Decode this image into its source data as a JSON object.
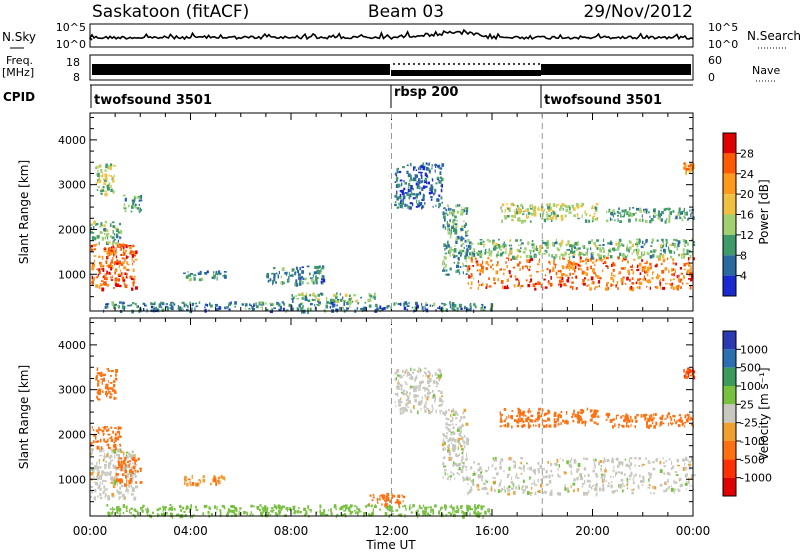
{
  "header": {
    "station": "Saskatoon (fitACF)",
    "beam": "Beam 03",
    "date": "29/Nov/2012"
  },
  "noise_panel": {
    "left_label": "N.Sky",
    "right_label": "N.Search",
    "left_ticks": [
      "10^5",
      "10^0"
    ],
    "right_ticks": [
      "10^5",
      "10^0"
    ]
  },
  "freq_panel": {
    "left_label_1": "Freq.",
    "left_label_2": "[MHz]",
    "left_ticks": [
      "18",
      "8"
    ],
    "right_label": "Nave",
    "right_ticks": [
      "60",
      "0"
    ]
  },
  "cpid": {
    "label": "CPID",
    "segments": [
      {
        "name": "twofsound 3501",
        "start_h": 0,
        "end_h": 12
      },
      {
        "name": "rbsp 200",
        "start_h": 12,
        "end_h": 18
      },
      {
        "name": "twofsound 3501",
        "start_h": 18,
        "end_h": 24
      }
    ]
  },
  "power_colorbar": {
    "title": "Power [dB]",
    "ticks": [
      "28",
      "24",
      "20",
      "16",
      "12",
      "8",
      "4"
    ],
    "colors": [
      "#e00000",
      "#ff5a00",
      "#ff9a1a",
      "#f0c040",
      "#a0d070",
      "#3f9a6a",
      "#2a6aa0",
      "#1a2ad0"
    ]
  },
  "velocity_colorbar": {
    "title": "Velocity [m s⁻¹]",
    "ticks": [
      "1000",
      "500",
      "100",
      "25",
      "-25",
      "-100",
      "-500",
      "-1000"
    ],
    "colors": [
      "#2a3ab0",
      "#2a70b0",
      "#3c9a5a",
      "#78c040",
      "#c8c8c0",
      "#f0a030",
      "#ff7010",
      "#ff3000",
      "#e00000"
    ]
  },
  "axes": {
    "ylabel": "Slant Range [km]",
    "yticks": [
      "4000",
      "3000",
      "2000",
      "1000"
    ],
    "xticks": [
      "00:00",
      "04:00",
      "08:00",
      "12:00",
      "16:00",
      "20:00",
      "00:00"
    ],
    "xlabel": "Time UT"
  },
  "chart_data": [
    {
      "type": "heatmap",
      "title": "",
      "xlabel": "Time UT",
      "ylabel": "Slant Range [km]",
      "xlim": [
        0,
        24
      ],
      "ylim": [
        180,
        4600
      ],
      "colorbar": "Power [dB]",
      "clim": [
        0,
        32
      ],
      "regions": [
        {
          "t0": 0.0,
          "t1": 1.8,
          "r0": 700,
          "r1": 1700,
          "level": 26
        },
        {
          "t0": 0.0,
          "t1": 1.2,
          "r0": 1700,
          "r1": 2200,
          "level": 12
        },
        {
          "t0": 0.2,
          "t1": 1.0,
          "r0": 2800,
          "r1": 3500,
          "level": 14
        },
        {
          "t0": 1.3,
          "t1": 2.0,
          "r0": 2400,
          "r1": 2800,
          "level": 10
        },
        {
          "t0": 3.7,
          "t1": 5.4,
          "r0": 900,
          "r1": 1100,
          "level": 8
        },
        {
          "t0": 7.0,
          "t1": 9.3,
          "r0": 800,
          "r1": 1200,
          "level": 8
        },
        {
          "t0": 8.0,
          "t1": 11.5,
          "r0": 400,
          "r1": 600,
          "level": 12
        },
        {
          "t0": 0.5,
          "t1": 16.0,
          "r0": 200,
          "r1": 400,
          "level": 8
        },
        {
          "t0": 12.1,
          "t1": 14.0,
          "r0": 2500,
          "r1": 3500,
          "level": 6
        },
        {
          "t0": 14.0,
          "t1": 15.0,
          "r0": 1000,
          "r1": 2600,
          "level": 10
        },
        {
          "t0": 15.0,
          "t1": 24.0,
          "r0": 700,
          "r1": 1400,
          "level": 25
        },
        {
          "t0": 15.0,
          "t1": 24.0,
          "r0": 1400,
          "r1": 1800,
          "level": 12
        },
        {
          "t0": 16.3,
          "t1": 20.2,
          "r0": 2200,
          "r1": 2600,
          "level": 15
        },
        {
          "t0": 20.5,
          "t1": 24.0,
          "r0": 2200,
          "r1": 2500,
          "level": 10
        },
        {
          "t0": 23.6,
          "t1": 24.0,
          "r0": 3300,
          "r1": 3500,
          "level": 22
        }
      ]
    },
    {
      "type": "heatmap",
      "title": "",
      "xlabel": "Time UT",
      "ylabel": "Slant Range [km]",
      "xlim": [
        0,
        24
      ],
      "ylim": [
        180,
        4600
      ],
      "colorbar": "Velocity [m s⁻¹]",
      "regions": [
        {
          "t0": 0.0,
          "t1": 1.8,
          "r0": 600,
          "r1": 1700,
          "velocity": 0
        },
        {
          "t0": 0.0,
          "t1": 1.2,
          "r0": 1700,
          "r1": 2200,
          "velocity": -300
        },
        {
          "t0": 0.2,
          "t1": 1.0,
          "r0": 2800,
          "r1": 3500,
          "velocity": -300
        },
        {
          "t0": 1.0,
          "t1": 2.0,
          "r0": 900,
          "r1": 1500,
          "velocity": -200
        },
        {
          "t0": 3.7,
          "t1": 5.4,
          "r0": 900,
          "r1": 1100,
          "velocity": -100
        },
        {
          "t0": 0.5,
          "t1": 16.0,
          "r0": 200,
          "r1": 450,
          "velocity": 60
        },
        {
          "t0": 11.0,
          "t1": 12.5,
          "r0": 450,
          "r1": 700,
          "velocity": -400
        },
        {
          "t0": 12.1,
          "t1": 14.0,
          "r0": 2500,
          "r1": 3500,
          "velocity": 0
        },
        {
          "t0": 14.0,
          "t1": 15.0,
          "r0": 1000,
          "r1": 2600,
          "velocity": 0
        },
        {
          "t0": 15.0,
          "t1": 24.0,
          "r0": 700,
          "r1": 1500,
          "velocity": 0
        },
        {
          "t0": 16.3,
          "t1": 20.2,
          "r0": 2200,
          "r1": 2600,
          "velocity": -400
        },
        {
          "t0": 20.5,
          "t1": 24.0,
          "r0": 2200,
          "r1": 2500,
          "velocity": -400
        },
        {
          "t0": 23.6,
          "t1": 24.0,
          "r0": 3300,
          "r1": 3500,
          "velocity": -500
        }
      ]
    }
  ]
}
